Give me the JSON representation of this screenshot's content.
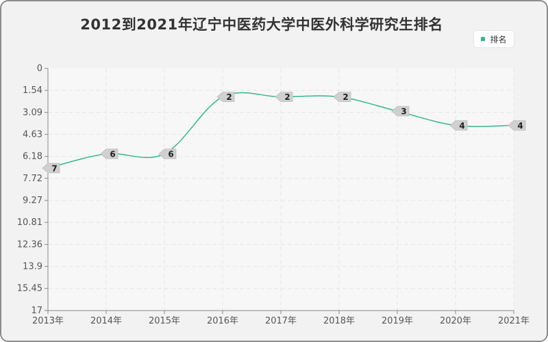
{
  "colors": {
    "line": "#2fb88e",
    "grid": "#e6e6e6",
    "axis": "#888888",
    "plot_bg": "#f7f7f7",
    "label_bg": "#d0d0d0"
  },
  "chart_data": {
    "type": "line",
    "title": "2012到2021年辽宁中医药大学中医外科学研究生排名",
    "categories": [
      "2013年",
      "2014年",
      "2015年",
      "2016年",
      "2017年",
      "2018年",
      "2019年",
      "2020年",
      "2021年"
    ],
    "series": [
      {
        "name": "排名",
        "values": [
          7,
          6,
          6,
          2,
          2,
          2,
          3,
          4,
          4
        ]
      }
    ],
    "y_ticks": [
      "0",
      "1.54",
      "3.09",
      "4.63",
      "6.18",
      "7.72",
      "9.27",
      "10.81",
      "12.36",
      "13.9",
      "15.45",
      "17"
    ],
    "ylim": [
      0,
      17
    ],
    "y_inverted": true,
    "grid": true,
    "legend_position": "top-right"
  }
}
